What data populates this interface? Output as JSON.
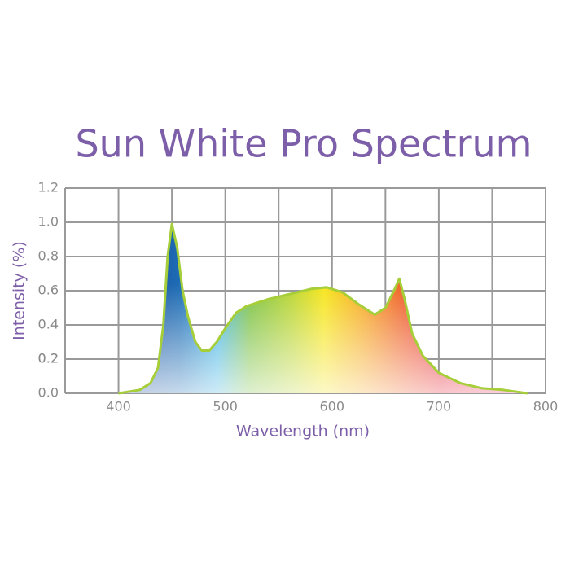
{
  "chart_data": {
    "type": "area",
    "title": "Sun White Pro Spectrum",
    "x_label": "Wavelength (nm)",
    "y_label": "Intensity (%)",
    "x": [
      400,
      420,
      430,
      437,
      442,
      446,
      450,
      455,
      460,
      465,
      472,
      478,
      485,
      492,
      500,
      510,
      520,
      540,
      560,
      580,
      595,
      610,
      625,
      640,
      650,
      658,
      663,
      668,
      675,
      685,
      700,
      720,
      740,
      760,
      783
    ],
    "values": [
      0,
      0.02,
      0.06,
      0.15,
      0.4,
      0.8,
      0.99,
      0.85,
      0.6,
      0.45,
      0.3,
      0.25,
      0.25,
      0.3,
      0.38,
      0.47,
      0.51,
      0.55,
      0.58,
      0.61,
      0.62,
      0.59,
      0.52,
      0.46,
      0.5,
      0.6,
      0.67,
      0.55,
      0.35,
      0.22,
      0.12,
      0.06,
      0.03,
      0.02,
      0
    ],
    "color": "#a6ce39",
    "xlim": [
      350,
      800
    ],
    "xticks": [
      400,
      500,
      600,
      700,
      800
    ],
    "x_minor_ticks": [
      450,
      550,
      650,
      750
    ],
    "ylim": [
      0,
      1.2
    ],
    "yticks": [
      {
        "value": 0,
        "label": "0.0"
      },
      0.2,
      0.4,
      0.6,
      0.8,
      {
        "value": 1,
        "label": "1.0"
      },
      0.2,
      1.2
    ],
    "grid": true
  }
}
